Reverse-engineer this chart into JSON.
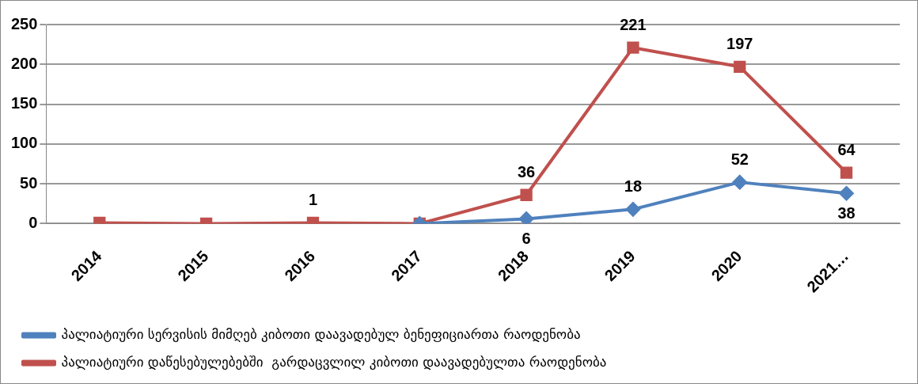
{
  "chart_data": {
    "type": "line",
    "categories": [
      "2014",
      "2015",
      "2016",
      "2017",
      "2018",
      "2019",
      "2020",
      "2021…"
    ],
    "series": [
      {
        "name": "პალიატიური სერვისის მიმღებ კიბოთი დაავადებულ ბენეფიციართა რაოდენობა",
        "color": "#4f81bd",
        "marker": "diamond",
        "values": [
          null,
          null,
          null,
          0,
          6,
          18,
          52,
          38
        ],
        "value_labels": [
          null,
          null,
          null,
          null,
          "6",
          "18",
          "52",
          "38"
        ]
      },
      {
        "name": "პალიატიური დაწესებულებებში  გარდაცვლილ კიბოთი დაავადებულთა რაოდენობა",
        "color": "#c0504d",
        "marker": "square",
        "values": [
          1,
          0,
          1,
          0,
          36,
          221,
          197,
          64
        ],
        "value_labels": [
          null,
          null,
          "1",
          null,
          "36",
          "221",
          "197",
          "64"
        ]
      }
    ],
    "ylim": [
      0,
      250
    ],
    "yticks": [
      0,
      50,
      100,
      150,
      200,
      250
    ],
    "grid": "y",
    "legend": "bottom"
  }
}
